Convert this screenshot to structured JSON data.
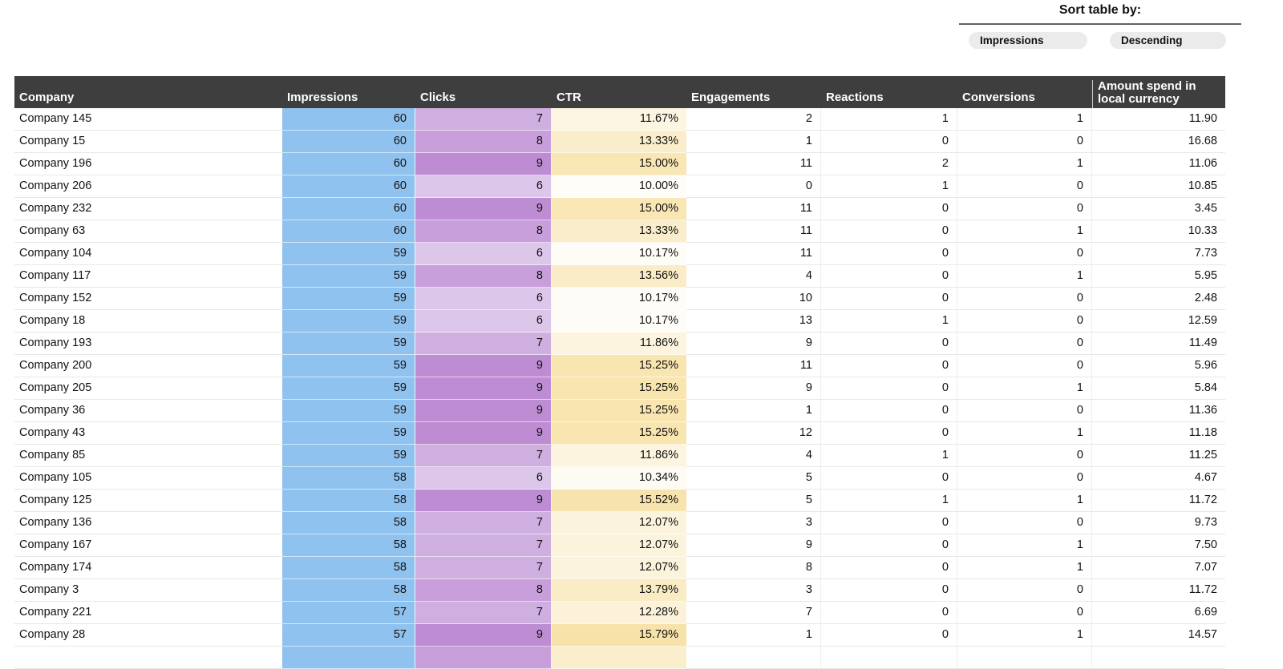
{
  "sort": {
    "title": "Sort table by:",
    "field_pill": "Impressions",
    "direction_pill": "Descending"
  },
  "table": {
    "columns": [
      {
        "key": "company",
        "label": "Company"
      },
      {
        "key": "impressions",
        "label": "Impressions"
      },
      {
        "key": "clicks",
        "label": "Clicks"
      },
      {
        "key": "ctr",
        "label": "CTR"
      },
      {
        "key": "engagements",
        "label": "Engagements"
      },
      {
        "key": "reactions",
        "label": "Reactions"
      },
      {
        "key": "conversions",
        "label": "Conversions"
      },
      {
        "key": "amount",
        "label": "Amount spend in local currency"
      }
    ],
    "rows": [
      {
        "company": "Company 145",
        "impressions": 60,
        "clicks": 7,
        "ctr": "11.67%",
        "engagements": 2,
        "reactions": 1,
        "conversions": 1,
        "amount": "11.90"
      },
      {
        "company": "Company 15",
        "impressions": 60,
        "clicks": 8,
        "ctr": "13.33%",
        "engagements": 1,
        "reactions": 0,
        "conversions": 0,
        "amount": "16.68"
      },
      {
        "company": "Company 196",
        "impressions": 60,
        "clicks": 9,
        "ctr": "15.00%",
        "engagements": 11,
        "reactions": 2,
        "conversions": 1,
        "amount": "11.06"
      },
      {
        "company": "Company 206",
        "impressions": 60,
        "clicks": 6,
        "ctr": "10.00%",
        "engagements": 0,
        "reactions": 1,
        "conversions": 0,
        "amount": "10.85"
      },
      {
        "company": "Company 232",
        "impressions": 60,
        "clicks": 9,
        "ctr": "15.00%",
        "engagements": 11,
        "reactions": 0,
        "conversions": 0,
        "amount": "3.45"
      },
      {
        "company": "Company 63",
        "impressions": 60,
        "clicks": 8,
        "ctr": "13.33%",
        "engagements": 11,
        "reactions": 0,
        "conversions": 1,
        "amount": "10.33"
      },
      {
        "company": "Company 104",
        "impressions": 59,
        "clicks": 6,
        "ctr": "10.17%",
        "engagements": 11,
        "reactions": 0,
        "conversions": 0,
        "amount": "7.73"
      },
      {
        "company": "Company 117",
        "impressions": 59,
        "clicks": 8,
        "ctr": "13.56%",
        "engagements": 4,
        "reactions": 0,
        "conversions": 1,
        "amount": "5.95"
      },
      {
        "company": "Company 152",
        "impressions": 59,
        "clicks": 6,
        "ctr": "10.17%",
        "engagements": 10,
        "reactions": 0,
        "conversions": 0,
        "amount": "2.48"
      },
      {
        "company": "Company 18",
        "impressions": 59,
        "clicks": 6,
        "ctr": "10.17%",
        "engagements": 13,
        "reactions": 1,
        "conversions": 0,
        "amount": "12.59"
      },
      {
        "company": "Company 193",
        "impressions": 59,
        "clicks": 7,
        "ctr": "11.86%",
        "engagements": 9,
        "reactions": 0,
        "conversions": 0,
        "amount": "11.49"
      },
      {
        "company": "Company 200",
        "impressions": 59,
        "clicks": 9,
        "ctr": "15.25%",
        "engagements": 11,
        "reactions": 0,
        "conversions": 0,
        "amount": "5.96"
      },
      {
        "company": "Company 205",
        "impressions": 59,
        "clicks": 9,
        "ctr": "15.25%",
        "engagements": 9,
        "reactions": 0,
        "conversions": 1,
        "amount": "5.84"
      },
      {
        "company": "Company 36",
        "impressions": 59,
        "clicks": 9,
        "ctr": "15.25%",
        "engagements": 1,
        "reactions": 0,
        "conversions": 0,
        "amount": "11.36"
      },
      {
        "company": "Company 43",
        "impressions": 59,
        "clicks": 9,
        "ctr": "15.25%",
        "engagements": 12,
        "reactions": 0,
        "conversions": 1,
        "amount": "11.18"
      },
      {
        "company": "Company 85",
        "impressions": 59,
        "clicks": 7,
        "ctr": "11.86%",
        "engagements": 4,
        "reactions": 1,
        "conversions": 0,
        "amount": "11.25"
      },
      {
        "company": "Company 105",
        "impressions": 58,
        "clicks": 6,
        "ctr": "10.34%",
        "engagements": 5,
        "reactions": 0,
        "conversions": 0,
        "amount": "4.67"
      },
      {
        "company": "Company 125",
        "impressions": 58,
        "clicks": 9,
        "ctr": "15.52%",
        "engagements": 5,
        "reactions": 1,
        "conversions": 1,
        "amount": "11.72"
      },
      {
        "company": "Company 136",
        "impressions": 58,
        "clicks": 7,
        "ctr": "12.07%",
        "engagements": 3,
        "reactions": 0,
        "conversions": 0,
        "amount": "9.73"
      },
      {
        "company": "Company 167",
        "impressions": 58,
        "clicks": 7,
        "ctr": "12.07%",
        "engagements": 9,
        "reactions": 0,
        "conversions": 1,
        "amount": "7.50"
      },
      {
        "company": "Company 174",
        "impressions": 58,
        "clicks": 7,
        "ctr": "12.07%",
        "engagements": 8,
        "reactions": 0,
        "conversions": 1,
        "amount": "7.07"
      },
      {
        "company": "Company 3",
        "impressions": 58,
        "clicks": 8,
        "ctr": "13.79%",
        "engagements": 3,
        "reactions": 0,
        "conversions": 0,
        "amount": "11.72"
      },
      {
        "company": "Company 221",
        "impressions": 57,
        "clicks": 7,
        "ctr": "12.28%",
        "engagements": 7,
        "reactions": 0,
        "conversions": 0,
        "amount": "6.69"
      },
      {
        "company": "Company 28",
        "impressions": 57,
        "clicks": 9,
        "ctr": "15.79%",
        "engagements": 1,
        "reactions": 0,
        "conversions": 1,
        "amount": "14.57"
      }
    ],
    "partial_row_visible": true
  },
  "colors": {
    "header_bg": "#3e3e3e",
    "header_text": "#ffffff",
    "impressions_fill": "#90c2ef",
    "clicks_scale": {
      "6": "#dcc6ea",
      "7": "#cfaee0",
      "8": "#c89fda",
      "9": "#bd8cd3"
    },
    "ctr_scale": {
      "min_value": 10.0,
      "min_color": "#fefdf8",
      "max_value": 15.79,
      "max_color": "#f7e2a9"
    },
    "partial_row_fills": {
      "impressions": "#90c2ef",
      "clicks": "#c89fda",
      "ctr": "#faeecd"
    },
    "pill_bg": "#ebebeb",
    "sort_line": "#5f6368"
  }
}
